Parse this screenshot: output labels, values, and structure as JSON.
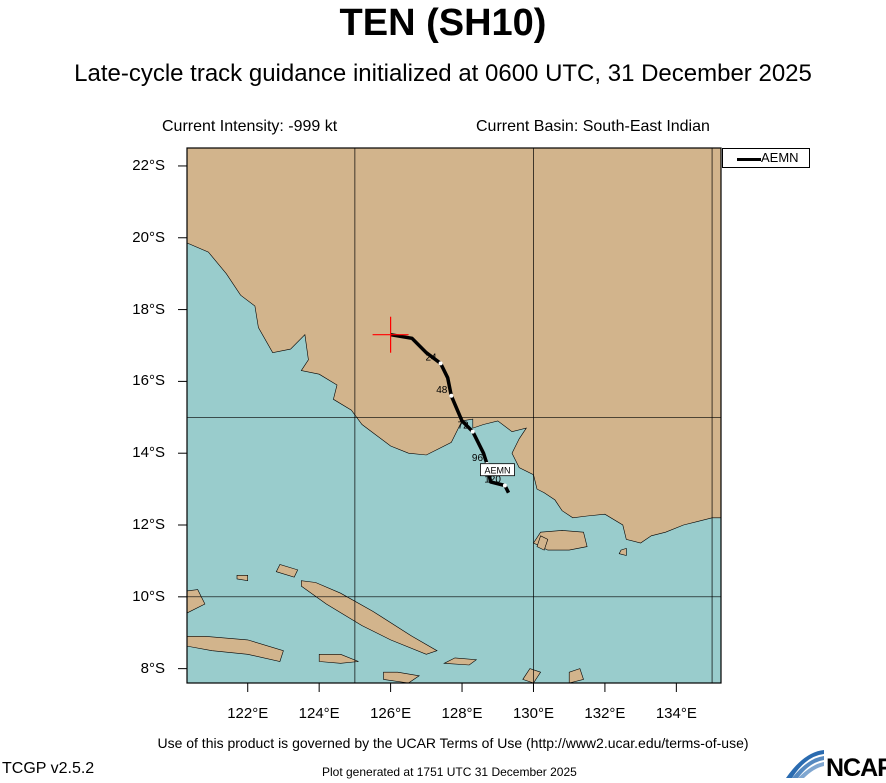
{
  "header": {
    "title": "TEN (SH10)",
    "subtitle": "Late-cycle track guidance initialized at 0600 UTC, 31 December 2025",
    "intensity": "Current Intensity: -999 kt",
    "basin": "Current Basin: South-East Indian"
  },
  "map": {
    "lon_range": [
      120.3,
      135.25
    ],
    "lat_range": [
      -22.5,
      -7.6
    ],
    "lat_ticks": [
      "8°S",
      "10°S",
      "12°S",
      "14°S",
      "16°S",
      "18°S",
      "20°S",
      "22°S"
    ],
    "lon_ticks": [
      "122°E",
      "124°E",
      "126°E",
      "128°E",
      "130°E",
      "132°E",
      "134°E"
    ],
    "colors": {
      "ocean": "#99cccc",
      "land": "#d2b48c",
      "track": "#000000",
      "storm_marker": "#ff0000"
    },
    "current_position": {
      "lon": 126.0,
      "lat": -17.3
    },
    "legend": {
      "label": "AEMN"
    }
  },
  "track": {
    "name": "AEMN",
    "points": [
      {
        "lon": 126.0,
        "lat": -17.3
      },
      {
        "lon": 126.6,
        "lat": -17.2
      },
      {
        "lon": 127.0,
        "lat": -16.8
      },
      {
        "lon": 127.4,
        "lat": -16.5,
        "tau": "24"
      },
      {
        "lon": 127.6,
        "lat": -16.1
      },
      {
        "lon": 127.7,
        "lat": -15.6,
        "tau": "48"
      },
      {
        "lon": 128.0,
        "lat": -14.9
      },
      {
        "lon": 128.3,
        "lat": -14.6,
        "tau": "72"
      },
      {
        "lon": 128.6,
        "lat": -14.0
      },
      {
        "lon": 128.7,
        "lat": -13.7,
        "tau": "96"
      },
      {
        "lon": 128.8,
        "lat": -13.2
      },
      {
        "lon": 129.2,
        "lat": -13.1,
        "tau": "120"
      },
      {
        "lon": 129.3,
        "lat": -12.9
      }
    ],
    "end_label": "AEMN"
  },
  "footer": {
    "terms": "Use of this product is governed by the UCAR Terms of Use (http://www2.ucar.edu/terms-of-use)",
    "version": "TCGP v2.5.2",
    "generated": "Plot generated at 1751 UTC   31 December 2025",
    "logo_text": "NCAR"
  }
}
